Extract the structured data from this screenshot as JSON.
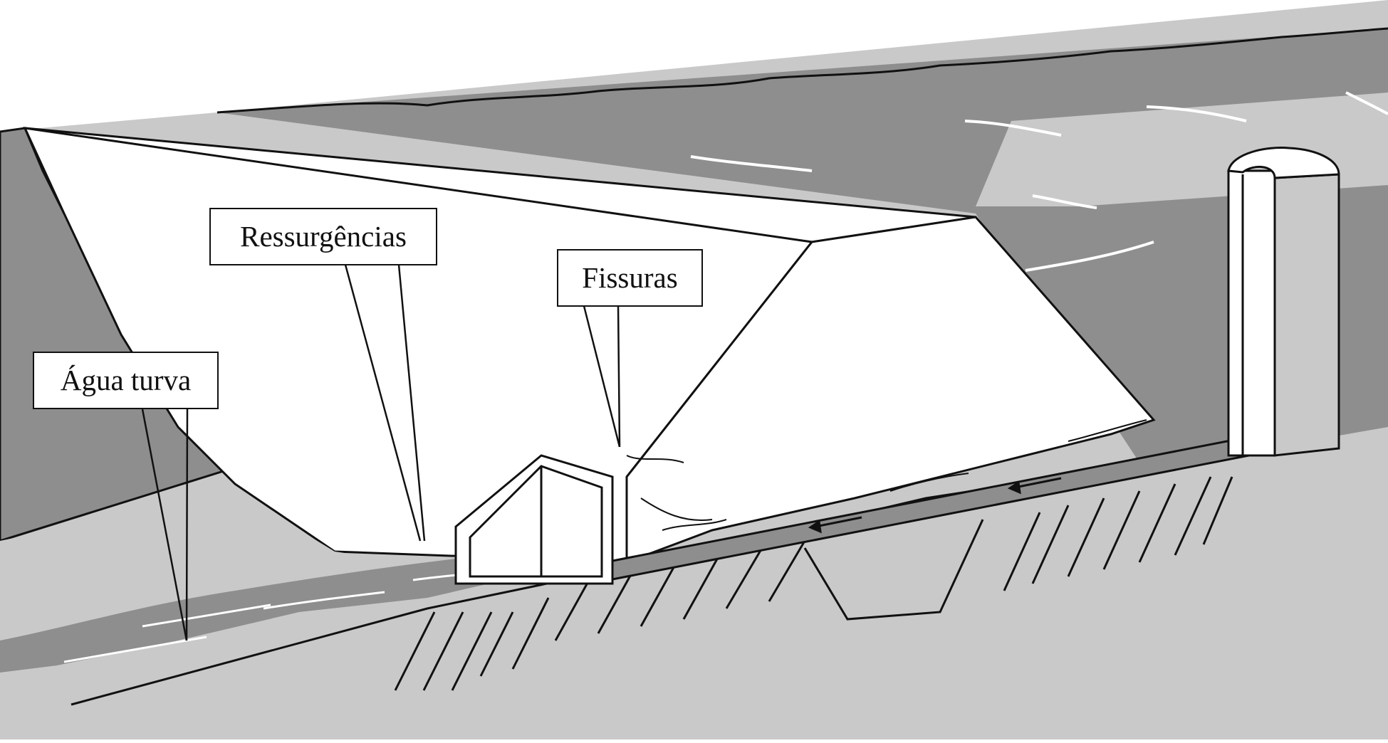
{
  "labels": {
    "ressurgencias": "Ressurgências",
    "fissuras": "Fissuras",
    "agua_turva": "Água turva"
  },
  "colors": {
    "line": "#111111",
    "water_dark": "#8c8c8c",
    "ground_light": "#c8c8c8",
    "water_flow": "#a6a6a6",
    "dam_face": "#ffffff"
  }
}
